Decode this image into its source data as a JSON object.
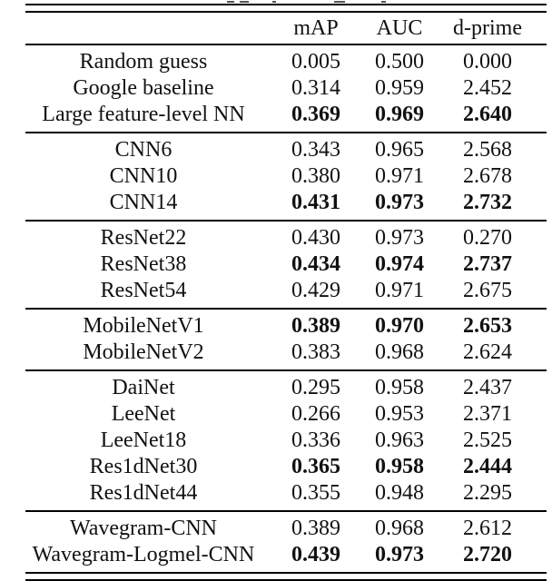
{
  "table": {
    "columns": [
      "",
      "mAP",
      "AUC",
      "d-prime"
    ],
    "groups": [
      {
        "rows": [
          {
            "model": "Random guess",
            "mAP": "0.005",
            "AUC": "0.500",
            "d_prime": "0.000",
            "bold": false
          },
          {
            "model": "Google baseline",
            "mAP": "0.314",
            "AUC": "0.959",
            "d_prime": "2.452",
            "bold": false
          },
          {
            "model": "Large feature-level NN",
            "mAP": "0.369",
            "AUC": "0.969",
            "d_prime": "2.640",
            "bold": true
          }
        ]
      },
      {
        "rows": [
          {
            "model": "CNN6",
            "mAP": "0.343",
            "AUC": "0.965",
            "d_prime": "2.568",
            "bold": false
          },
          {
            "model": "CNN10",
            "mAP": "0.380",
            "AUC": "0.971",
            "d_prime": "2.678",
            "bold": false
          },
          {
            "model": "CNN14",
            "mAP": "0.431",
            "AUC": "0.973",
            "d_prime": "2.732",
            "bold": true
          }
        ]
      },
      {
        "rows": [
          {
            "model": "ResNet22",
            "mAP": "0.430",
            "AUC": "0.973",
            "d_prime": "0.270",
            "bold": false
          },
          {
            "model": "ResNet38",
            "mAP": "0.434",
            "AUC": "0.974",
            "d_prime": "2.737",
            "bold": true
          },
          {
            "model": "ResNet54",
            "mAP": "0.429",
            "AUC": "0.971",
            "d_prime": "2.675",
            "bold": false
          }
        ]
      },
      {
        "rows": [
          {
            "model": "MobileNetV1",
            "mAP": "0.389",
            "AUC": "0.970",
            "d_prime": "2.653",
            "bold": true
          },
          {
            "model": "MobileNetV2",
            "mAP": "0.383",
            "AUC": "0.968",
            "d_prime": "2.624",
            "bold": false
          }
        ]
      },
      {
        "rows": [
          {
            "model": "DaiNet",
            "mAP": "0.295",
            "AUC": "0.958",
            "d_prime": "2.437",
            "bold": false
          },
          {
            "model": "LeeNet",
            "mAP": "0.266",
            "AUC": "0.953",
            "d_prime": "2.371",
            "bold": false
          },
          {
            "model": "LeeNet18",
            "mAP": "0.336",
            "AUC": "0.963",
            "d_prime": "2.525",
            "bold": false
          },
          {
            "model": "Res1dNet30",
            "mAP": "0.365",
            "AUC": "0.958",
            "d_prime": "2.444",
            "bold": true
          },
          {
            "model": "Res1dNet44",
            "mAP": "0.355",
            "AUC": "0.948",
            "d_prime": "2.295",
            "bold": false
          }
        ]
      },
      {
        "rows": [
          {
            "model": "Wavegram-CNN",
            "mAP": "0.389",
            "AUC": "0.968",
            "d_prime": "2.612",
            "bold": false
          },
          {
            "model": "Wavegram-Logmel-CNN",
            "mAP": "0.439",
            "AUC": "0.973",
            "d_prime": "2.720",
            "bold": true
          }
        ]
      }
    ]
  },
  "colors": {
    "rule": "#000000",
    "text": "#111111",
    "background": "#ffffff"
  }
}
